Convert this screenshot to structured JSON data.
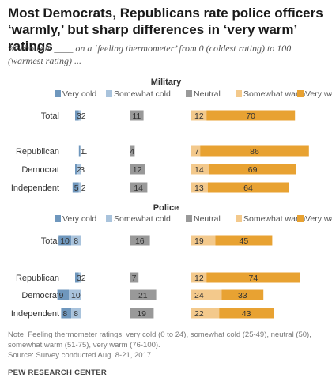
{
  "title": "Most Democrats, Republicans rate police officers ‘warmly,’ but sharp differences in ‘very warm’ ratings",
  "subtitle": "% who rate ____ on a ‘feeling thermometer’ from 0 (coldest rating) to 100 (warmest rating) ...",
  "note": "Note: Feeling thermometer ratings: very cold (0 to 24), somewhat cold (25-49), neutral (50), somewhat warm (51-75), very warm (76-100).",
  "source": "Source: Survey conducted Aug. 8-21, 2017.",
  "credit": "PEW RESEARCH CENTER",
  "colors": {
    "very_cold": "#6f97bd",
    "somewhat_cold": "#a9c3dc",
    "neutral": "#999999",
    "somewhat_warm": "#f3c98c",
    "very_warm": "#e8a232"
  },
  "chart_data": [
    {
      "type": "bar",
      "orientation": "horizontal",
      "layout": "diverging",
      "title": "Military",
      "categories": [
        "Total",
        "Republican",
        "Democrat",
        "Independent"
      ],
      "series": [
        {
          "name": "Very cold",
          "values": [
            3,
            1,
            2,
            5
          ]
        },
        {
          "name": "Somewhat cold",
          "values": [
            2,
            1,
            3,
            2
          ]
        },
        {
          "name": "Neutral",
          "values": [
            11,
            4,
            12,
            14
          ]
        },
        {
          "name": "Somewhat warm",
          "values": [
            12,
            7,
            14,
            13
          ]
        },
        {
          "name": "Very warm",
          "values": [
            70,
            86,
            69,
            64
          ]
        }
      ],
      "legend_position": "top"
    },
    {
      "type": "bar",
      "orientation": "horizontal",
      "layout": "diverging",
      "title": "Police",
      "categories": [
        "Total",
        "Republican",
        "Democrat",
        "Independent"
      ],
      "series": [
        {
          "name": "Very cold",
          "values": [
            10,
            3,
            9,
            8
          ]
        },
        {
          "name": "Somewhat cold",
          "values": [
            8,
            2,
            10,
            8
          ]
        },
        {
          "name": "Neutral",
          "values": [
            16,
            7,
            21,
            19
          ]
        },
        {
          "name": "Somewhat warm",
          "values": [
            19,
            12,
            24,
            22
          ]
        },
        {
          "name": "Very warm",
          "values": [
            45,
            74,
            33,
            43
          ]
        }
      ],
      "legend_position": "top"
    }
  ]
}
